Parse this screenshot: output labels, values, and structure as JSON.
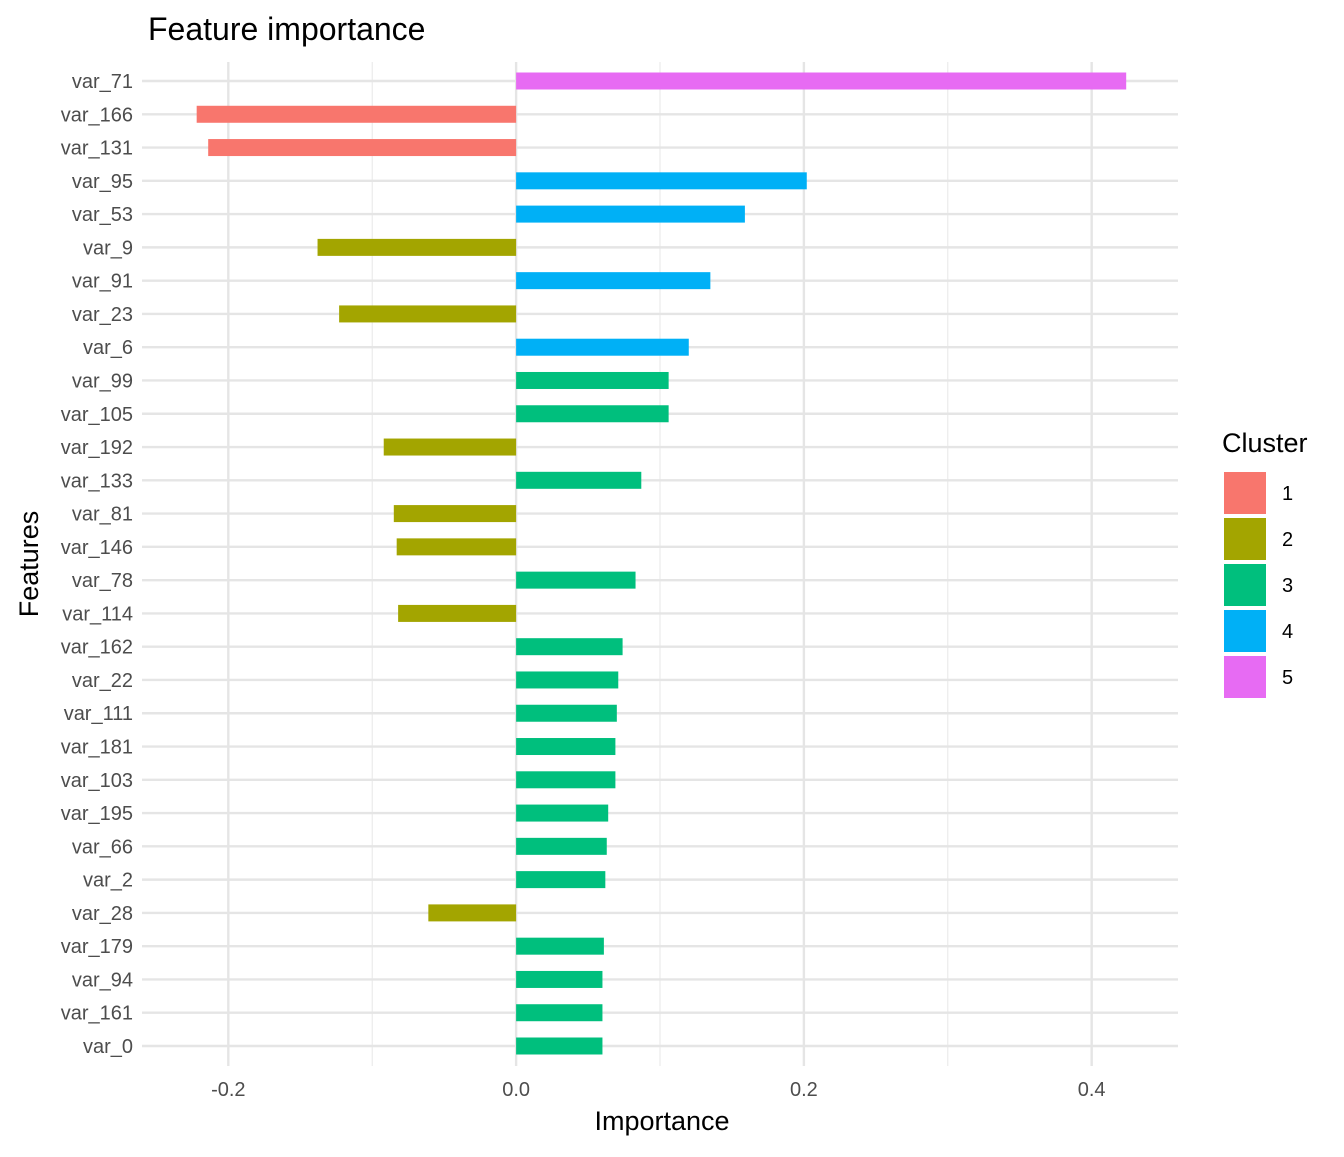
{
  "chart_data": {
    "type": "bar",
    "orientation": "horizontal",
    "title": "Feature importance",
    "xlabel": "Importance",
    "ylabel": "Features",
    "xlim": [
      -0.26,
      0.46
    ],
    "x_ticks": [
      -0.2,
      0.0,
      0.2,
      0.4
    ],
    "x_tick_labels": [
      "-0.2",
      "0.0",
      "0.2",
      "0.4"
    ],
    "grid": true,
    "legend": {
      "title": "Cluster",
      "position": "right",
      "entries": [
        {
          "label": "1",
          "color": "#F8766D"
        },
        {
          "label": "2",
          "color": "#A3A500"
        },
        {
          "label": "3",
          "color": "#00BF7D"
        },
        {
          "label": "4",
          "color": "#00B0F6"
        },
        {
          "label": "5",
          "color": "#E76BF3"
        }
      ]
    },
    "categories": [
      "var_71",
      "var_166",
      "var_131",
      "var_95",
      "var_53",
      "var_9",
      "var_91",
      "var_23",
      "var_6",
      "var_99",
      "var_105",
      "var_192",
      "var_133",
      "var_81",
      "var_146",
      "var_78",
      "var_114",
      "var_162",
      "var_22",
      "var_111",
      "var_181",
      "var_103",
      "var_195",
      "var_66",
      "var_2",
      "var_28",
      "var_179",
      "var_94",
      "var_161",
      "var_0"
    ],
    "values": [
      0.424,
      -0.222,
      -0.214,
      0.202,
      0.159,
      -0.138,
      0.135,
      -0.123,
      0.12,
      0.106,
      0.106,
      -0.092,
      0.087,
      -0.085,
      -0.083,
      0.083,
      -0.082,
      0.074,
      0.071,
      0.07,
      0.069,
      0.069,
      0.064,
      0.063,
      0.062,
      -0.061,
      0.061,
      0.06,
      0.06,
      0.06
    ],
    "clusters": [
      "5",
      "1",
      "1",
      "4",
      "4",
      "2",
      "4",
      "2",
      "4",
      "3",
      "3",
      "2",
      "3",
      "2",
      "2",
      "3",
      "2",
      "3",
      "3",
      "3",
      "3",
      "3",
      "3",
      "3",
      "3",
      "2",
      "3",
      "3",
      "3",
      "3"
    ]
  }
}
